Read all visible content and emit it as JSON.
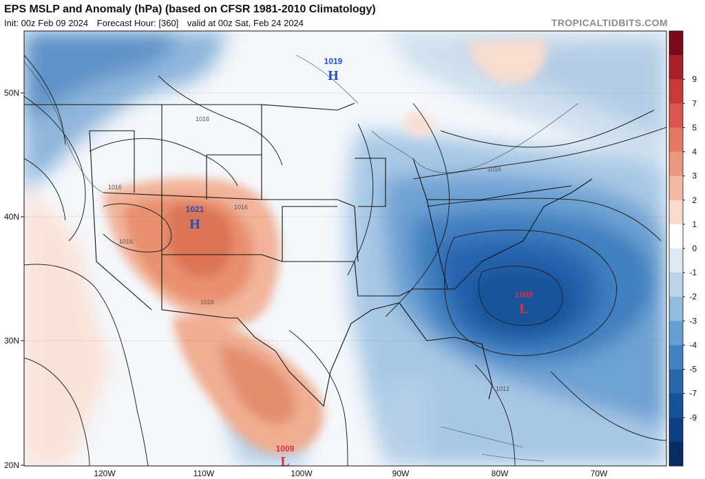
{
  "header": {
    "title": "EPS MSLP and Anomaly (hPa) (based on CFSR 1981-2010 Climatology)",
    "init": "Init: 00z Feb 09 2024",
    "forecast_hour": "Forecast Hour: [360]",
    "valid": "valid at 00z Sat, Feb 24 2024",
    "brand": "TROPICALTIDBITS.COM"
  },
  "map": {
    "lat_labels": [
      "50N",
      "40N",
      "30N",
      "20N"
    ],
    "lon_labels": [
      "120W",
      "110W",
      "100W",
      "90W",
      "80W",
      "70W"
    ],
    "isobar_labels": [
      "1016",
      "1016",
      "1016",
      "1016",
      "1016",
      "1016",
      "1012"
    ],
    "pressure_centers": [
      {
        "letter": "H",
        "value": "1019",
        "color": "#1f4fbf"
      },
      {
        "letter": "H",
        "value": "1021",
        "color": "#1f4fbf"
      },
      {
        "letter": "L",
        "value": "1009",
        "color": "#d6334a"
      },
      {
        "letter": "L",
        "value": "1009",
        "color": "#d6334a"
      }
    ]
  },
  "colorbar": {
    "labels": [
      "9",
      "7",
      "5",
      "4",
      "3",
      "2",
      "1",
      "0",
      "-1",
      "-2",
      "-3",
      "-4",
      "-5",
      "-7",
      "-9"
    ],
    "colors": [
      "#7a0b1f",
      "#a8202a",
      "#c8393a",
      "#d9574c",
      "#e47864",
      "#ec9980",
      "#f3b9a2",
      "#f9dccf",
      "#ffffff",
      "#dde9f4",
      "#bcd4ea",
      "#93bbde",
      "#669fd1",
      "#3f83c2",
      "#2568ad",
      "#16529a",
      "#0d3f82",
      "#082c63"
    ]
  }
}
